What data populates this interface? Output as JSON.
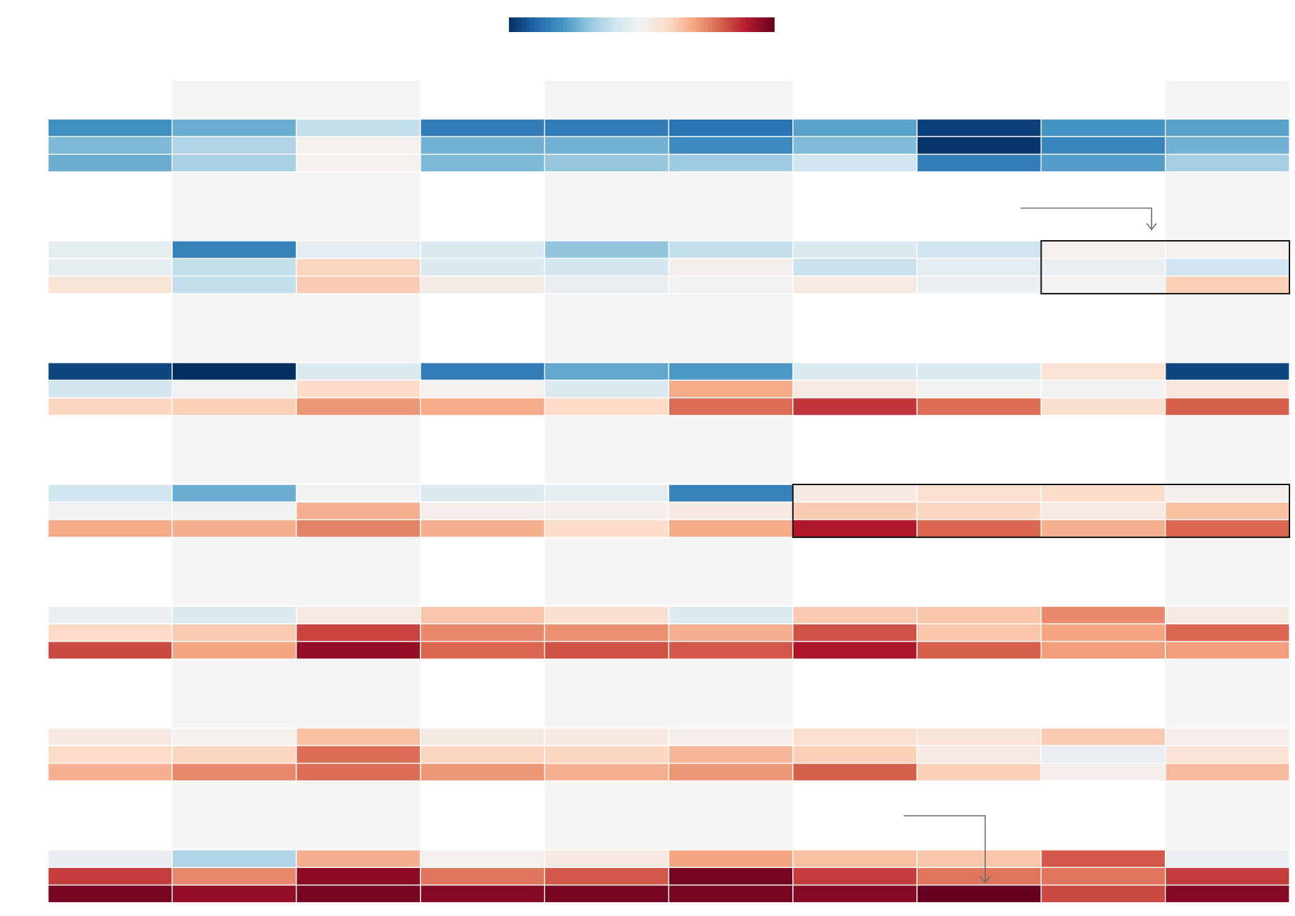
{
  "chart_data": {
    "type": "heatmap",
    "title": "",
    "xlabel": "",
    "ylabel": "",
    "columns": 10,
    "rows_per_block": 3,
    "blocks": 7,
    "shaded_columns": [
      1,
      2,
      4,
      5,
      9
    ],
    "colorbar": {
      "scale": "RdBu_r",
      "vmin": -1,
      "vmax": 1,
      "tick_labels": []
    },
    "highlight_boxes": [
      {
        "block": 1,
        "col_start": 8,
        "col_end": 9
      },
      {
        "block": 3,
        "col_start": 6,
        "col_end": 9
      }
    ],
    "annotation_arrows": [
      {
        "target_block": 1,
        "target_col": 8,
        "label": ""
      },
      {
        "target_block": 6,
        "target_col": 7,
        "label": ""
      }
    ],
    "values": [
      [
        [
          -0.62,
          -0.5,
          -0.24,
          -0.7,
          -0.7,
          -0.74,
          -0.54,
          -0.94,
          -0.6,
          -0.54
        ],
        [
          -0.45,
          -0.3,
          0.02,
          -0.48,
          -0.48,
          -0.64,
          -0.44,
          -0.98,
          -0.66,
          -0.48
        ],
        [
          -0.5,
          -0.33,
          0.02,
          -0.45,
          -0.38,
          -0.36,
          -0.2,
          -0.7,
          -0.56,
          -0.34
        ]
      ],
      [
        [
          -0.08,
          -0.68,
          -0.1,
          -0.14,
          -0.4,
          -0.24,
          -0.14,
          -0.2,
          0.02,
          0.02
        ],
        [
          -0.08,
          -0.24,
          0.22,
          -0.14,
          -0.18,
          0.03,
          -0.22,
          -0.1,
          -0.04,
          -0.2
        ],
        [
          0.12,
          -0.24,
          0.26,
          0.06,
          -0.06,
          0.0,
          0.08,
          -0.04,
          0.01,
          0.24
        ]
      ],
      [
        [
          -0.92,
          -1.0,
          -0.14,
          -0.7,
          -0.52,
          -0.58,
          -0.14,
          -0.14,
          0.14,
          -0.92
        ],
        [
          -0.18,
          -0.02,
          0.18,
          0.02,
          -0.14,
          0.38,
          0.08,
          0.0,
          0.0,
          0.1
        ],
        [
          0.22,
          0.24,
          0.44,
          0.38,
          0.2,
          0.56,
          0.72,
          0.56,
          0.16,
          0.6
        ]
      ],
      [
        [
          -0.2,
          -0.5,
          -0.02,
          -0.14,
          -0.08,
          -0.68,
          0.07,
          0.16,
          0.18,
          0.03
        ],
        [
          -0.02,
          -0.02,
          0.36,
          0.04,
          0.03,
          0.07,
          0.26,
          0.22,
          0.08,
          0.3
        ],
        [
          0.38,
          0.36,
          0.5,
          0.36,
          0.18,
          0.38,
          0.8,
          0.58,
          0.36,
          0.58
        ]
      ],
      [
        [
          -0.04,
          -0.14,
          0.08,
          0.28,
          0.16,
          -0.12,
          0.26,
          0.28,
          0.48,
          0.08
        ],
        [
          0.2,
          0.26,
          0.68,
          0.48,
          0.46,
          0.36,
          0.64,
          0.28,
          0.4,
          0.58
        ],
        [
          0.66,
          0.4,
          0.88,
          0.58,
          0.64,
          0.62,
          0.82,
          0.6,
          0.42,
          0.42
        ]
      ],
      [
        [
          0.08,
          0.02,
          0.3,
          0.06,
          0.08,
          0.04,
          0.16,
          0.12,
          0.26,
          0.04
        ],
        [
          0.18,
          0.22,
          0.56,
          0.22,
          0.22,
          0.34,
          0.24,
          0.08,
          -0.06,
          0.14
        ],
        [
          0.36,
          0.48,
          0.56,
          0.44,
          0.36,
          0.44,
          0.6,
          0.24,
          0.04,
          0.32
        ]
      ],
      [
        [
          -0.06,
          -0.3,
          0.36,
          0.02,
          0.08,
          0.4,
          0.3,
          0.28,
          0.62,
          -0.04
        ],
        [
          0.7,
          0.48,
          0.9,
          0.54,
          0.62,
          0.96,
          0.7,
          0.54,
          0.54,
          0.7
        ],
        [
          0.96,
          0.88,
          0.96,
          0.92,
          0.96,
          0.96,
          0.92,
          1.0,
          0.66,
          0.92
        ]
      ]
    ]
  }
}
